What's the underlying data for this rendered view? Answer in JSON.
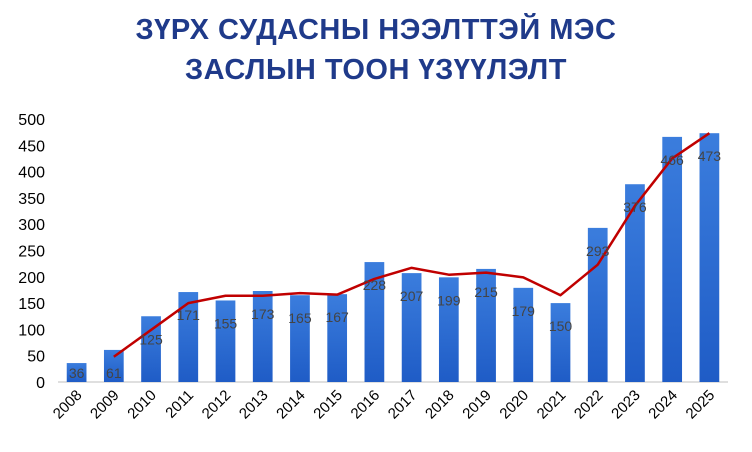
{
  "chart_data": {
    "type": "bar",
    "title": [
      "ЗҮРХ СУДАСНЫ НЭЭЛТТЭЙ МЭС",
      "ЗАСЛЫН ТООН ҮЗҮҮЛЭЛТ"
    ],
    "categories": [
      "2008",
      "2009",
      "2010",
      "2011",
      "2012",
      "2013",
      "2014",
      "2015",
      "2016",
      "2017",
      "2018",
      "2019",
      "2020",
      "2021",
      "2022",
      "2023",
      "2024",
      "2025"
    ],
    "values": [
      36,
      61,
      125,
      171,
      155,
      173,
      165,
      167,
      228,
      207,
      199,
      215,
      179,
      150,
      293,
      376,
      466,
      473
    ],
    "trendline": [
      null,
      48,
      99,
      150,
      164,
      164,
      169,
      166,
      196,
      217,
      204,
      208,
      199,
      165,
      223,
      335,
      425,
      473
    ],
    "ylim": [
      0,
      500
    ],
    "yticks": [
      0,
      50,
      100,
      150,
      200,
      250,
      300,
      350,
      400,
      450,
      500
    ],
    "grid": false,
    "colors": {
      "bar_top": "#3b7ddd",
      "bar_bottom": "#1f5cc6",
      "line": "#c00000",
      "title": "#1f3a8a"
    }
  }
}
